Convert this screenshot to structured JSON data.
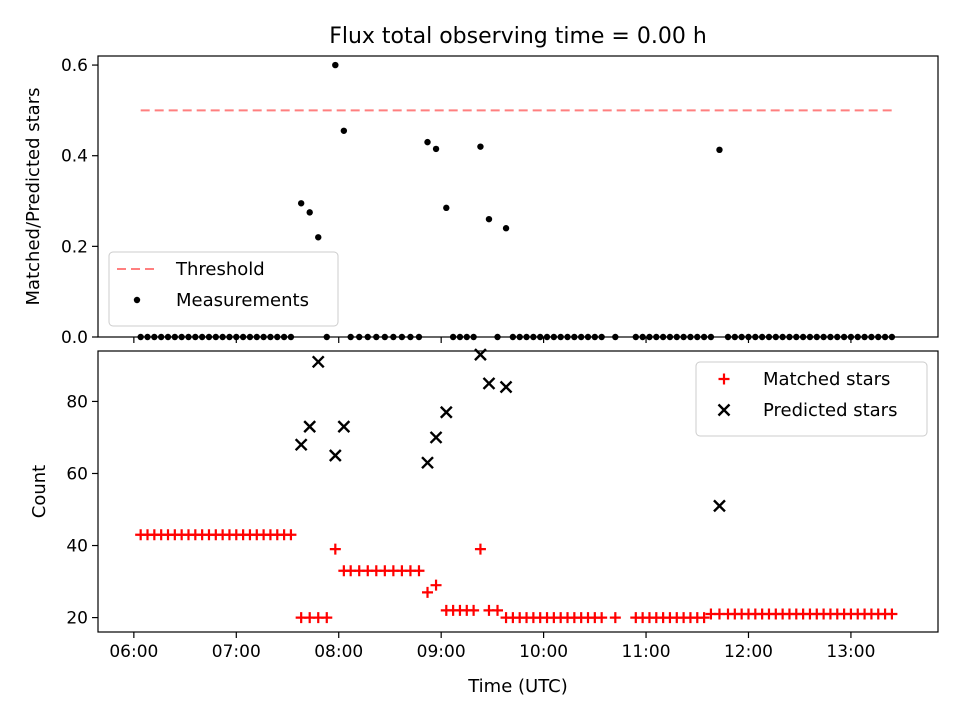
{
  "chart_data": {
    "title": "Flux total observing time = 0.00 h",
    "xlabel": "Time (UTC)",
    "x_tick_labels": [
      "06:00",
      "07:00",
      "08:00",
      "09:00",
      "10:00",
      "11:00",
      "12:00",
      "13:00"
    ],
    "x_range_hours": [
      5.65,
      13.85
    ],
    "panels": [
      {
        "type": "scatter",
        "ylabel": "Matched/Predicted stars",
        "ylim": [
          0,
          0.62
        ],
        "y_ticks": [
          0.0,
          0.2,
          0.4,
          0.6
        ],
        "y_tick_labels": [
          "0.0",
          "0.2",
          "0.4",
          "0.6"
        ],
        "legend_placement": "lower-left",
        "series": [
          {
            "name": "Threshold",
            "style": "dashed-line",
            "color": "#ff7f7f",
            "x": [
              "06:04",
              "13:25"
            ],
            "y": [
              0.5,
              0.5
            ]
          },
          {
            "name": "Measurements",
            "style": "dot",
            "color": "#000000",
            "points": [
              [
                "06:04",
                0
              ],
              [
                "06:08",
                0
              ],
              [
                "06:12",
                0
              ],
              [
                "06:16",
                0
              ],
              [
                "06:20",
                0
              ],
              [
                "06:24",
                0
              ],
              [
                "06:28",
                0
              ],
              [
                "06:32",
                0
              ],
              [
                "06:36",
                0
              ],
              [
                "06:40",
                0
              ],
              [
                "06:44",
                0
              ],
              [
                "06:48",
                0
              ],
              [
                "06:52",
                0
              ],
              [
                "06:56",
                0
              ],
              [
                "07:00",
                0
              ],
              [
                "07:04",
                0
              ],
              [
                "07:08",
                0
              ],
              [
                "07:12",
                0
              ],
              [
                "07:16",
                0
              ],
              [
                "07:20",
                0
              ],
              [
                "07:24",
                0
              ],
              [
                "07:28",
                0
              ],
              [
                "07:32",
                0
              ],
              [
                "07:38",
                0.295
              ],
              [
                "07:43",
                0.275
              ],
              [
                "07:48",
                0.22
              ],
              [
                "07:53",
                0
              ],
              [
                "07:58",
                0.6
              ],
              [
                "08:03",
                0.455
              ],
              [
                "08:07",
                0
              ],
              [
                "08:12",
                0
              ],
              [
                "08:17",
                0
              ],
              [
                "08:22",
                0
              ],
              [
                "08:27",
                0
              ],
              [
                "08:32",
                0
              ],
              [
                "08:37",
                0
              ],
              [
                "08:42",
                0
              ],
              [
                "08:47",
                0
              ],
              [
                "08:52",
                0.43
              ],
              [
                "08:57",
                0.415
              ],
              [
                "09:03",
                0.285
              ],
              [
                "09:07",
                0
              ],
              [
                "09:11",
                0
              ],
              [
                "09:15",
                0
              ],
              [
                "09:19",
                0
              ],
              [
                "09:23",
                0.42
              ],
              [
                "09:28",
                0.26
              ],
              [
                "09:33",
                0
              ],
              [
                "09:38",
                0.24
              ],
              [
                "09:42",
                0
              ],
              [
                "09:46",
                0
              ],
              [
                "09:50",
                0
              ],
              [
                "09:54",
                0
              ],
              [
                "09:58",
                0
              ],
              [
                "10:02",
                0
              ],
              [
                "10:06",
                0
              ],
              [
                "10:10",
                0
              ],
              [
                "10:14",
                0
              ],
              [
                "10:18",
                0
              ],
              [
                "10:22",
                0
              ],
              [
                "10:26",
                0
              ],
              [
                "10:30",
                0
              ],
              [
                "10:34",
                0
              ],
              [
                "10:42",
                0
              ],
              [
                "10:54",
                0
              ],
              [
                "10:58",
                0
              ],
              [
                "11:02",
                0
              ],
              [
                "11:06",
                0
              ],
              [
                "11:10",
                0
              ],
              [
                "11:14",
                0
              ],
              [
                "11:18",
                0
              ],
              [
                "11:22",
                0
              ],
              [
                "11:26",
                0
              ],
              [
                "11:30",
                0
              ],
              [
                "11:34",
                0
              ],
              [
                "11:38",
                0
              ],
              [
                "11:43",
                0.413
              ],
              [
                "11:48",
                0
              ],
              [
                "11:52",
                0
              ],
              [
                "11:56",
                0
              ],
              [
                "12:00",
                0
              ],
              [
                "12:04",
                0
              ],
              [
                "12:08",
                0
              ],
              [
                "12:12",
                0
              ],
              [
                "12:16",
                0
              ],
              [
                "12:20",
                0
              ],
              [
                "12:24",
                0
              ],
              [
                "12:28",
                0
              ],
              [
                "12:32",
                0
              ],
              [
                "12:36",
                0
              ],
              [
                "12:40",
                0
              ],
              [
                "12:44",
                0
              ],
              [
                "12:48",
                0
              ],
              [
                "12:52",
                0
              ],
              [
                "12:56",
                0
              ],
              [
                "13:00",
                0
              ],
              [
                "13:04",
                0
              ],
              [
                "13:08",
                0
              ],
              [
                "13:12",
                0
              ],
              [
                "13:16",
                0
              ],
              [
                "13:20",
                0
              ],
              [
                "13:24",
                0
              ]
            ]
          }
        ]
      },
      {
        "type": "scatter",
        "ylabel": "Count",
        "ylim": [
          16,
          94
        ],
        "y_ticks": [
          20,
          40,
          60,
          80
        ],
        "y_tick_labels": [
          "20",
          "40",
          "60",
          "80"
        ],
        "legend_placement": "top-right",
        "series": [
          {
            "name": "Matched stars",
            "style": "plus",
            "color": "#ff0000",
            "points": [
              [
                "06:04",
                43
              ],
              [
                "06:08",
                43
              ],
              [
                "06:12",
                43
              ],
              [
                "06:16",
                43
              ],
              [
                "06:20",
                43
              ],
              [
                "06:24",
                43
              ],
              [
                "06:28",
                43
              ],
              [
                "06:32",
                43
              ],
              [
                "06:36",
                43
              ],
              [
                "06:40",
                43
              ],
              [
                "06:44",
                43
              ],
              [
                "06:48",
                43
              ],
              [
                "06:52",
                43
              ],
              [
                "06:56",
                43
              ],
              [
                "07:00",
                43
              ],
              [
                "07:04",
                43
              ],
              [
                "07:08",
                43
              ],
              [
                "07:12",
                43
              ],
              [
                "07:16",
                43
              ],
              [
                "07:20",
                43
              ],
              [
                "07:24",
                43
              ],
              [
                "07:28",
                43
              ],
              [
                "07:32",
                43
              ],
              [
                "07:38",
                20
              ],
              [
                "07:43",
                20
              ],
              [
                "07:48",
                20
              ],
              [
                "07:53",
                20
              ],
              [
                "07:58",
                39
              ],
              [
                "08:03",
                33
              ],
              [
                "08:07",
                33
              ],
              [
                "08:12",
                33
              ],
              [
                "08:17",
                33
              ],
              [
                "08:22",
                33
              ],
              [
                "08:27",
                33
              ],
              [
                "08:32",
                33
              ],
              [
                "08:37",
                33
              ],
              [
                "08:42",
                33
              ],
              [
                "08:47",
                33
              ],
              [
                "08:52",
                27
              ],
              [
                "08:57",
                29
              ],
              [
                "09:03",
                22
              ],
              [
                "09:07",
                22
              ],
              [
                "09:11",
                22
              ],
              [
                "09:15",
                22
              ],
              [
                "09:19",
                22
              ],
              [
                "09:23",
                39
              ],
              [
                "09:28",
                22
              ],
              [
                "09:33",
                22
              ],
              [
                "09:38",
                20
              ],
              [
                "09:42",
                20
              ],
              [
                "09:46",
                20
              ],
              [
                "09:50",
                20
              ],
              [
                "09:54",
                20
              ],
              [
                "09:58",
                20
              ],
              [
                "10:02",
                20
              ],
              [
                "10:06",
                20
              ],
              [
                "10:10",
                20
              ],
              [
                "10:14",
                20
              ],
              [
                "10:18",
                20
              ],
              [
                "10:22",
                20
              ],
              [
                "10:26",
                20
              ],
              [
                "10:30",
                20
              ],
              [
                "10:34",
                20
              ],
              [
                "10:42",
                20
              ],
              [
                "10:54",
                20
              ],
              [
                "10:58",
                20
              ],
              [
                "11:02",
                20
              ],
              [
                "11:06",
                20
              ],
              [
                "11:10",
                20
              ],
              [
                "11:14",
                20
              ],
              [
                "11:18",
                20
              ],
              [
                "11:22",
                20
              ],
              [
                "11:26",
                20
              ],
              [
                "11:30",
                20
              ],
              [
                "11:34",
                20
              ],
              [
                "11:38",
                21
              ],
              [
                "11:43",
                21
              ],
              [
                "11:48",
                21
              ],
              [
                "11:52",
                21
              ],
              [
                "11:56",
                21
              ],
              [
                "12:00",
                21
              ],
              [
                "12:04",
                21
              ],
              [
                "12:08",
                21
              ],
              [
                "12:12",
                21
              ],
              [
                "12:16",
                21
              ],
              [
                "12:20",
                21
              ],
              [
                "12:24",
                21
              ],
              [
                "12:28",
                21
              ],
              [
                "12:32",
                21
              ],
              [
                "12:36",
                21
              ],
              [
                "12:40",
                21
              ],
              [
                "12:44",
                21
              ],
              [
                "12:48",
                21
              ],
              [
                "12:52",
                21
              ],
              [
                "12:56",
                21
              ],
              [
                "13:00",
                21
              ],
              [
                "13:04",
                21
              ],
              [
                "13:08",
                21
              ],
              [
                "13:12",
                21
              ],
              [
                "13:16",
                21
              ],
              [
                "13:20",
                21
              ],
              [
                "13:24",
                21
              ]
            ]
          },
          {
            "name": "Predicted stars",
            "style": "cross",
            "color": "#000000",
            "points": [
              [
                "07:38",
                68
              ],
              [
                "07:43",
                73
              ],
              [
                "07:48",
                91
              ],
              [
                "07:58",
                65
              ],
              [
                "08:03",
                73
              ],
              [
                "08:52",
                63
              ],
              [
                "08:57",
                70
              ],
              [
                "09:03",
                77
              ],
              [
                "09:23",
                93
              ],
              [
                "09:28",
                85
              ],
              [
                "09:38",
                84
              ],
              [
                "11:43",
                51
              ]
            ]
          }
        ]
      }
    ]
  }
}
